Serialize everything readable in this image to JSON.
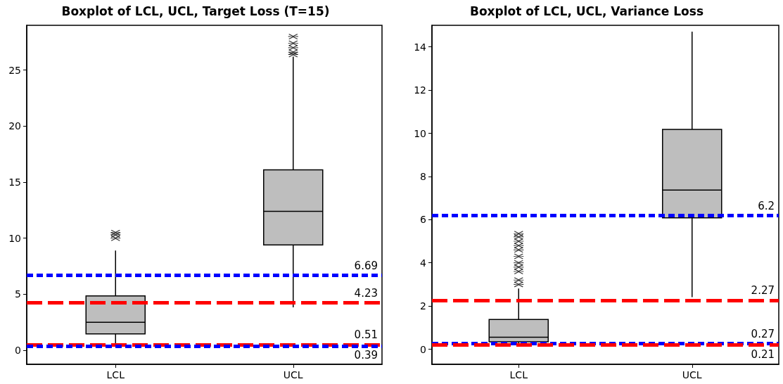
{
  "chart_data": [
    {
      "type": "box",
      "title": "Boxplot of LCL, UCL, Target Loss (T=15)",
      "categories": [
        "LCL",
        "UCL"
      ],
      "boxes": [
        {
          "low": 0.44,
          "q1": 1.47,
          "median": 2.5,
          "q3": 4.85,
          "high": 8.9,
          "outliers": [
            10.0,
            10.3,
            10.5
          ]
        },
        {
          "low": 3.84,
          "q1": 9.4,
          "median": 12.4,
          "q3": 16.1,
          "high": 26.2,
          "outliers": [
            26.4,
            26.6,
            27.0,
            27.4,
            28.0
          ]
        }
      ],
      "color": "#bebebe",
      "ylim": [
        -1.25,
        29
      ],
      "yticks": [
        0,
        5,
        10,
        15,
        20,
        25
      ],
      "grid": false,
      "ref_lines": [
        {
          "axis": "y",
          "value": 6.69,
          "label": "6.69",
          "color": "#0000ff",
          "line_style": "dotted"
        },
        {
          "axis": "y",
          "value": 4.23,
          "label": "4.23",
          "color": "#ff0000",
          "line_style": "dashed"
        },
        {
          "axis": "y",
          "value": 0.51,
          "label": "0.51",
          "color": "#ff0000",
          "line_style": "dashed"
        },
        {
          "axis": "y",
          "value": 0.39,
          "label": "0.39",
          "color": "#0000ff",
          "line_style": "dotted"
        }
      ]
    },
    {
      "type": "box",
      "title": "Boxplot of LCL, UCL, Variance Loss",
      "categories": [
        "LCL",
        "UCL"
      ],
      "boxes": [
        {
          "low": 0.2,
          "q1": 0.34,
          "median": 0.55,
          "q3": 1.38,
          "high": 2.81,
          "outliers": [
            3.0,
            3.2,
            3.6,
            3.8,
            4.0,
            4.3,
            4.6,
            4.8,
            5.0,
            5.2,
            5.35
          ]
        },
        {
          "low": 2.41,
          "q1": 6.08,
          "median": 7.37,
          "q3": 10.18,
          "high": 14.71
        }
      ],
      "color": "#bebebe",
      "ylim": [
        -0.7,
        15
      ],
      "yticks": [
        0,
        2,
        4,
        6,
        8,
        10,
        12,
        14
      ],
      "grid": false,
      "ref_lines": [
        {
          "axis": "y",
          "value": 6.2,
          "label": "6.2",
          "color": "#0000ff",
          "line_style": "dotted"
        },
        {
          "axis": "y",
          "value": 2.27,
          "label": "2.27",
          "color": "#ff0000",
          "line_style": "dashed"
        },
        {
          "axis": "y",
          "value": 0.27,
          "label": "0.27",
          "color": "#0000ff",
          "line_style": "dotted"
        },
        {
          "axis": "y",
          "value": 0.21,
          "label": "0.21",
          "color": "#ff0000",
          "line_style": "dashed"
        }
      ]
    }
  ]
}
